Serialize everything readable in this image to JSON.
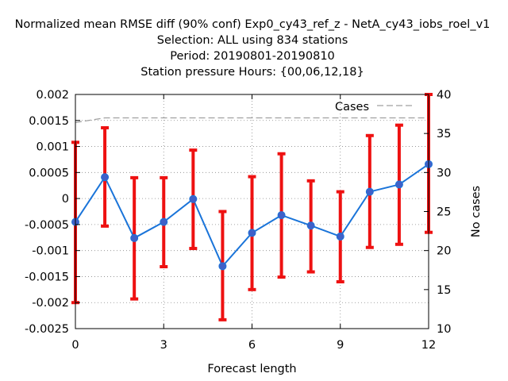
{
  "chart_data": {
    "type": "line",
    "title_lines": [
      "Normalized mean RMSE diff (90% conf) Exp0_cy43_ref_z - NetA_cy43_iobs_roel_v1",
      "Selection: ALL using   834 stations",
      "Period: 20190801-20190810",
      "Station pressure   Hours: {00,06,12,18}"
    ],
    "xlabel": "Forecast length",
    "ylabel": "",
    "y2label": "No cases",
    "xlim": [
      0,
      12
    ],
    "ylim": [
      -0.0025,
      0.002
    ],
    "y2lim": [
      10,
      40
    ],
    "xticks": [
      0,
      3,
      6,
      9,
      12
    ],
    "yticks": [
      -0.0025,
      -0.002,
      -0.0015,
      -0.001,
      -0.0005,
      0,
      0.0005,
      0.001,
      0.0015,
      0.002
    ],
    "ytick_labels": [
      "-0.0025",
      "-0.002",
      "-0.0015",
      "-0.001",
      "-0.0005",
      "0",
      "0.0005",
      "0.001",
      "0.0015",
      "0.002"
    ],
    "y2ticks": [
      10,
      15,
      20,
      25,
      30,
      35,
      40
    ],
    "grid": true,
    "legend": {
      "position": "top-right"
    },
    "series": [
      {
        "name": "",
        "axis": "y",
        "color": "#1a74d9",
        "marker_color": "#4060c8",
        "x": [
          0,
          1,
          2,
          3,
          4,
          5,
          6,
          7,
          8,
          9,
          10,
          11,
          12
        ],
        "y": [
          -0.00045,
          0.00041,
          -0.00076,
          -0.00045,
          -1e-05,
          -0.0013,
          -0.00066,
          -0.00032,
          -0.00052,
          -0.00073,
          0.00013,
          0.00027,
          0.00066
        ],
        "err_low": [
          -0.002,
          -0.00053,
          -0.00193,
          -0.00131,
          -0.00096,
          -0.00233,
          -0.00175,
          -0.00151,
          -0.00141,
          -0.0016,
          -0.00094,
          -0.00088,
          -0.00065
        ],
        "err_high": [
          0.00108,
          0.00136,
          0.0004,
          0.0004,
          0.00093,
          -0.00025,
          0.00042,
          0.00086,
          0.00034,
          0.00013,
          0.00121,
          0.00141,
          0.002
        ],
        "err_color": "#ee1111"
      },
      {
        "name": "Cases",
        "axis": "y2",
        "style": "dashed",
        "color": "#a0a0a0",
        "x": [
          0,
          1,
          2,
          3,
          4,
          5,
          6,
          7,
          8,
          9,
          10,
          11,
          12
        ],
        "y": [
          36.4,
          37.0,
          37.0,
          37.0,
          37.0,
          37.0,
          37.0,
          37.0,
          37.0,
          37.0,
          37.0,
          37.0,
          37.0
        ]
      }
    ]
  }
}
